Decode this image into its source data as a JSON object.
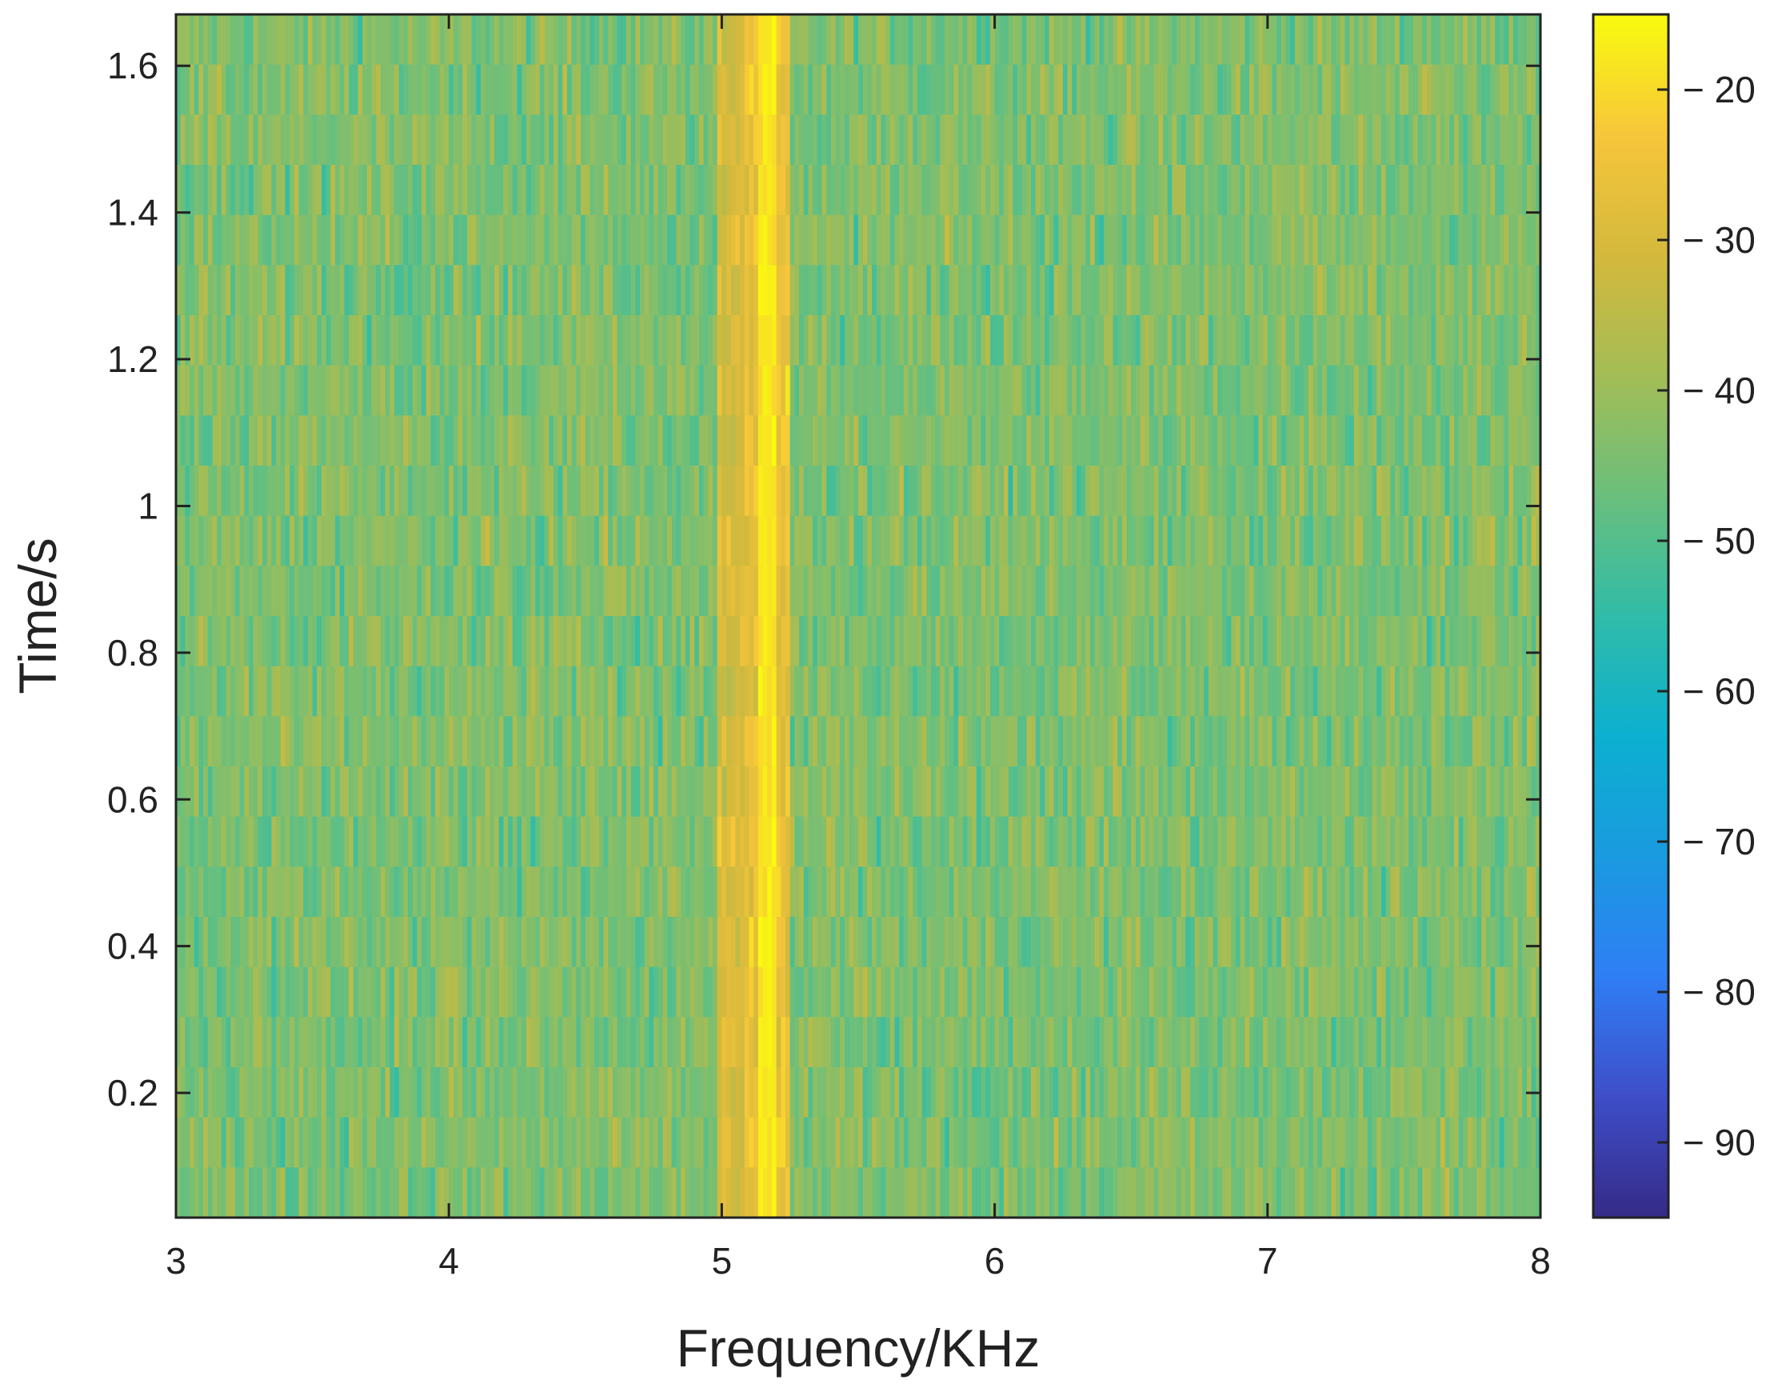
{
  "chart_data": {
    "type": "heatmap",
    "title": "",
    "xlabel": "Frequency/KHz",
    "ylabel": "Time/s",
    "xlim": [
      3,
      8
    ],
    "ylim": [
      0.03,
      1.67
    ],
    "xticks": [
      3,
      4,
      5,
      6,
      7,
      8
    ],
    "xtick_labels": [
      "3",
      "4",
      "5",
      "6",
      "7",
      "8"
    ],
    "yticks": [
      0.2,
      0.4,
      0.6,
      0.8,
      1.0,
      1.2,
      1.4,
      1.6
    ],
    "ytick_labels": [
      "0.2",
      "0.4",
      "0.6",
      "0.8",
      "1",
      "1.2",
      "1.4",
      "1.6"
    ],
    "grid": false,
    "colorbar": {
      "range": [
        -95,
        -15
      ],
      "ticks": [
        -20,
        -30,
        -40,
        -50,
        -60,
        -70,
        -80,
        -90
      ],
      "tick_labels": [
        "− 20",
        "− 30",
        "− 40",
        "− 50",
        "− 60",
        "− 70",
        "− 80",
        "− 90"
      ],
      "colormap": "parula",
      "colormap_stops": [
        "#352a87",
        "#3e4ec8",
        "#2f7ef5",
        "#1a9ae0",
        "#0cb0d0",
        "#30bca8",
        "#6abf7c",
        "#a3bd56",
        "#d4b93c",
        "#f7c63b",
        "#f9fb0e"
      ]
    },
    "time_bins": 24,
    "freq_bins": 300,
    "background_level_db": -44,
    "background_spread_db": 7,
    "dominant_tone": {
      "frequency_khz": 5.17,
      "level_db": -18
    },
    "sideband": {
      "frequency_khz": 5.05,
      "level_db": -30
    }
  }
}
